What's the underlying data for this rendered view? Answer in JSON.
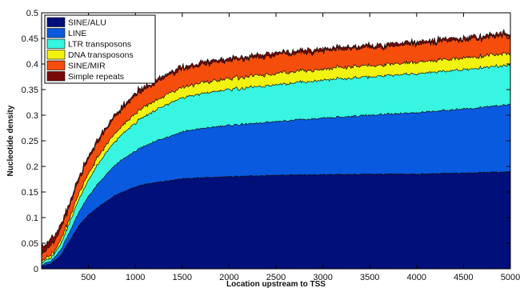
{
  "chart_data": {
    "type": "area",
    "stacked": true,
    "title": "",
    "xlabel": "Location upstream to TSS",
    "ylabel": "Nucleotide density",
    "xlim": [
      0,
      5000
    ],
    "ylim": [
      0,
      0.5
    ],
    "x_ticks": [
      500,
      1000,
      1500,
      2000,
      2500,
      3000,
      3500,
      4000,
      4500,
      5000
    ],
    "y_ticks": [
      0,
      0.05,
      0.1,
      0.15,
      0.2,
      0.25,
      0.3,
      0.35,
      0.4,
      0.45,
      0.5
    ],
    "grid": false,
    "legend_position": "top-left",
    "x": [
      0,
      100,
      200,
      300,
      400,
      500,
      600,
      700,
      800,
      900,
      1000,
      1100,
      1200,
      1300,
      1400,
      1500,
      1700,
      2000,
      2500,
      3000,
      3500,
      4000,
      4500,
      5000
    ],
    "series": [
      {
        "name": "SINE/ALU",
        "color": "#000f7a",
        "values": [
          0.005,
          0.01,
          0.025,
          0.055,
          0.085,
          0.105,
          0.12,
          0.133,
          0.145,
          0.153,
          0.16,
          0.165,
          0.168,
          0.171,
          0.174,
          0.176,
          0.178,
          0.18,
          0.183,
          0.184,
          0.185,
          0.185,
          0.187,
          0.19
        ]
      },
      {
        "name": "LINE",
        "color": "#0a5ae0",
        "values": [
          0.003,
          0.005,
          0.01,
          0.018,
          0.027,
          0.036,
          0.045,
          0.053,
          0.06,
          0.065,
          0.07,
          0.075,
          0.08,
          0.084,
          0.088,
          0.091,
          0.096,
          0.1,
          0.105,
          0.11,
          0.115,
          0.12,
          0.125,
          0.131
        ]
      },
      {
        "name": "LTR transposons",
        "color": "#37f5e0",
        "values": [
          0.004,
          0.007,
          0.012,
          0.018,
          0.025,
          0.032,
          0.038,
          0.043,
          0.047,
          0.051,
          0.055,
          0.058,
          0.06,
          0.062,
          0.064,
          0.066,
          0.068,
          0.07,
          0.072,
          0.074,
          0.075,
          0.076,
          0.077,
          0.078
        ]
      },
      {
        "name": "DNA transposons",
        "color": "#f2f211",
        "values": [
          0.003,
          0.005,
          0.007,
          0.009,
          0.011,
          0.013,
          0.014,
          0.015,
          0.016,
          0.017,
          0.018,
          0.018,
          0.019,
          0.019,
          0.02,
          0.02,
          0.021,
          0.021,
          0.022,
          0.022,
          0.022,
          0.022,
          0.023,
          0.023
        ]
      },
      {
        "name": "SINE/MIR",
        "color": "#f54d0c",
        "values": [
          0.015,
          0.017,
          0.02,
          0.023,
          0.026,
          0.028,
          0.03,
          0.031,
          0.032,
          0.033,
          0.034,
          0.034,
          0.034,
          0.035,
          0.035,
          0.035,
          0.035,
          0.035,
          0.035,
          0.035,
          0.035,
          0.035,
          0.035,
          0.035
        ]
      },
      {
        "name": "Simple repeats",
        "color": "#7a0a0a",
        "values": [
          0.015,
          0.012,
          0.009,
          0.007,
          0.006,
          0.006,
          0.005,
          0.005,
          0.005,
          0.005,
          0.005,
          0.005,
          0.005,
          0.005,
          0.005,
          0.005,
          0.005,
          0.005,
          0.005,
          0.005,
          0.005,
          0.005,
          0.005,
          0.005
        ]
      }
    ]
  }
}
